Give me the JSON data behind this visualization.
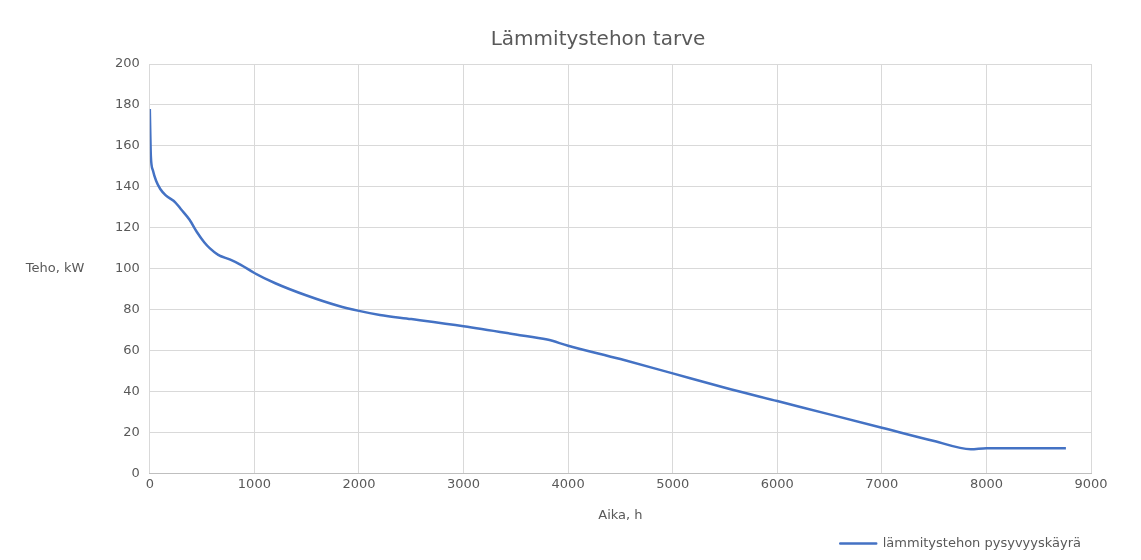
{
  "chart_data": {
    "type": "line",
    "title": "Lämmitystehon tarve",
    "xlabel": "Aika, h",
    "ylabel": "Teho, kW",
    "xlim": [
      0,
      9000
    ],
    "xticks": [
      0,
      1000,
      2000,
      3000,
      4000,
      5000,
      6000,
      7000,
      8000,
      9000
    ],
    "ylim": [
      0,
      200
    ],
    "yticks": [
      0,
      20,
      40,
      60,
      80,
      100,
      120,
      140,
      160,
      180,
      200
    ],
    "grid": true,
    "legend": "bottom right",
    "marker": "none",
    "line_style": "solid",
    "series": [
      {
        "name": "lämmitystehon pysyvyyskäyrä",
        "color": "#4472c4",
        "x": [
          0,
          5,
          10,
          30,
          60,
          100,
          150,
          243,
          300,
          380,
          450,
          520,
          575,
          650,
          770,
          870,
          1000,
          1200,
          1500,
          1800,
          2000,
          2200,
          2500,
          3000,
          3500,
          3800,
          4000,
          4500,
          5000,
          5500,
          6000,
          6500,
          7000,
          7500,
          7850,
          8000,
          8400,
          8760
        ],
        "values": [
          178,
          165,
          155,
          148,
          143,
          139,
          136,
          132.5,
          129,
          124,
          118,
          113,
          110,
          107,
          104.5,
          102,
          98,
          93,
          87,
          82,
          79.5,
          77.5,
          75.5,
          72,
          68,
          65.5,
          62.5,
          56,
          49,
          42,
          35.5,
          29,
          22.5,
          16,
          12,
          12.5,
          12.5,
          12.5
        ]
      }
    ]
  }
}
